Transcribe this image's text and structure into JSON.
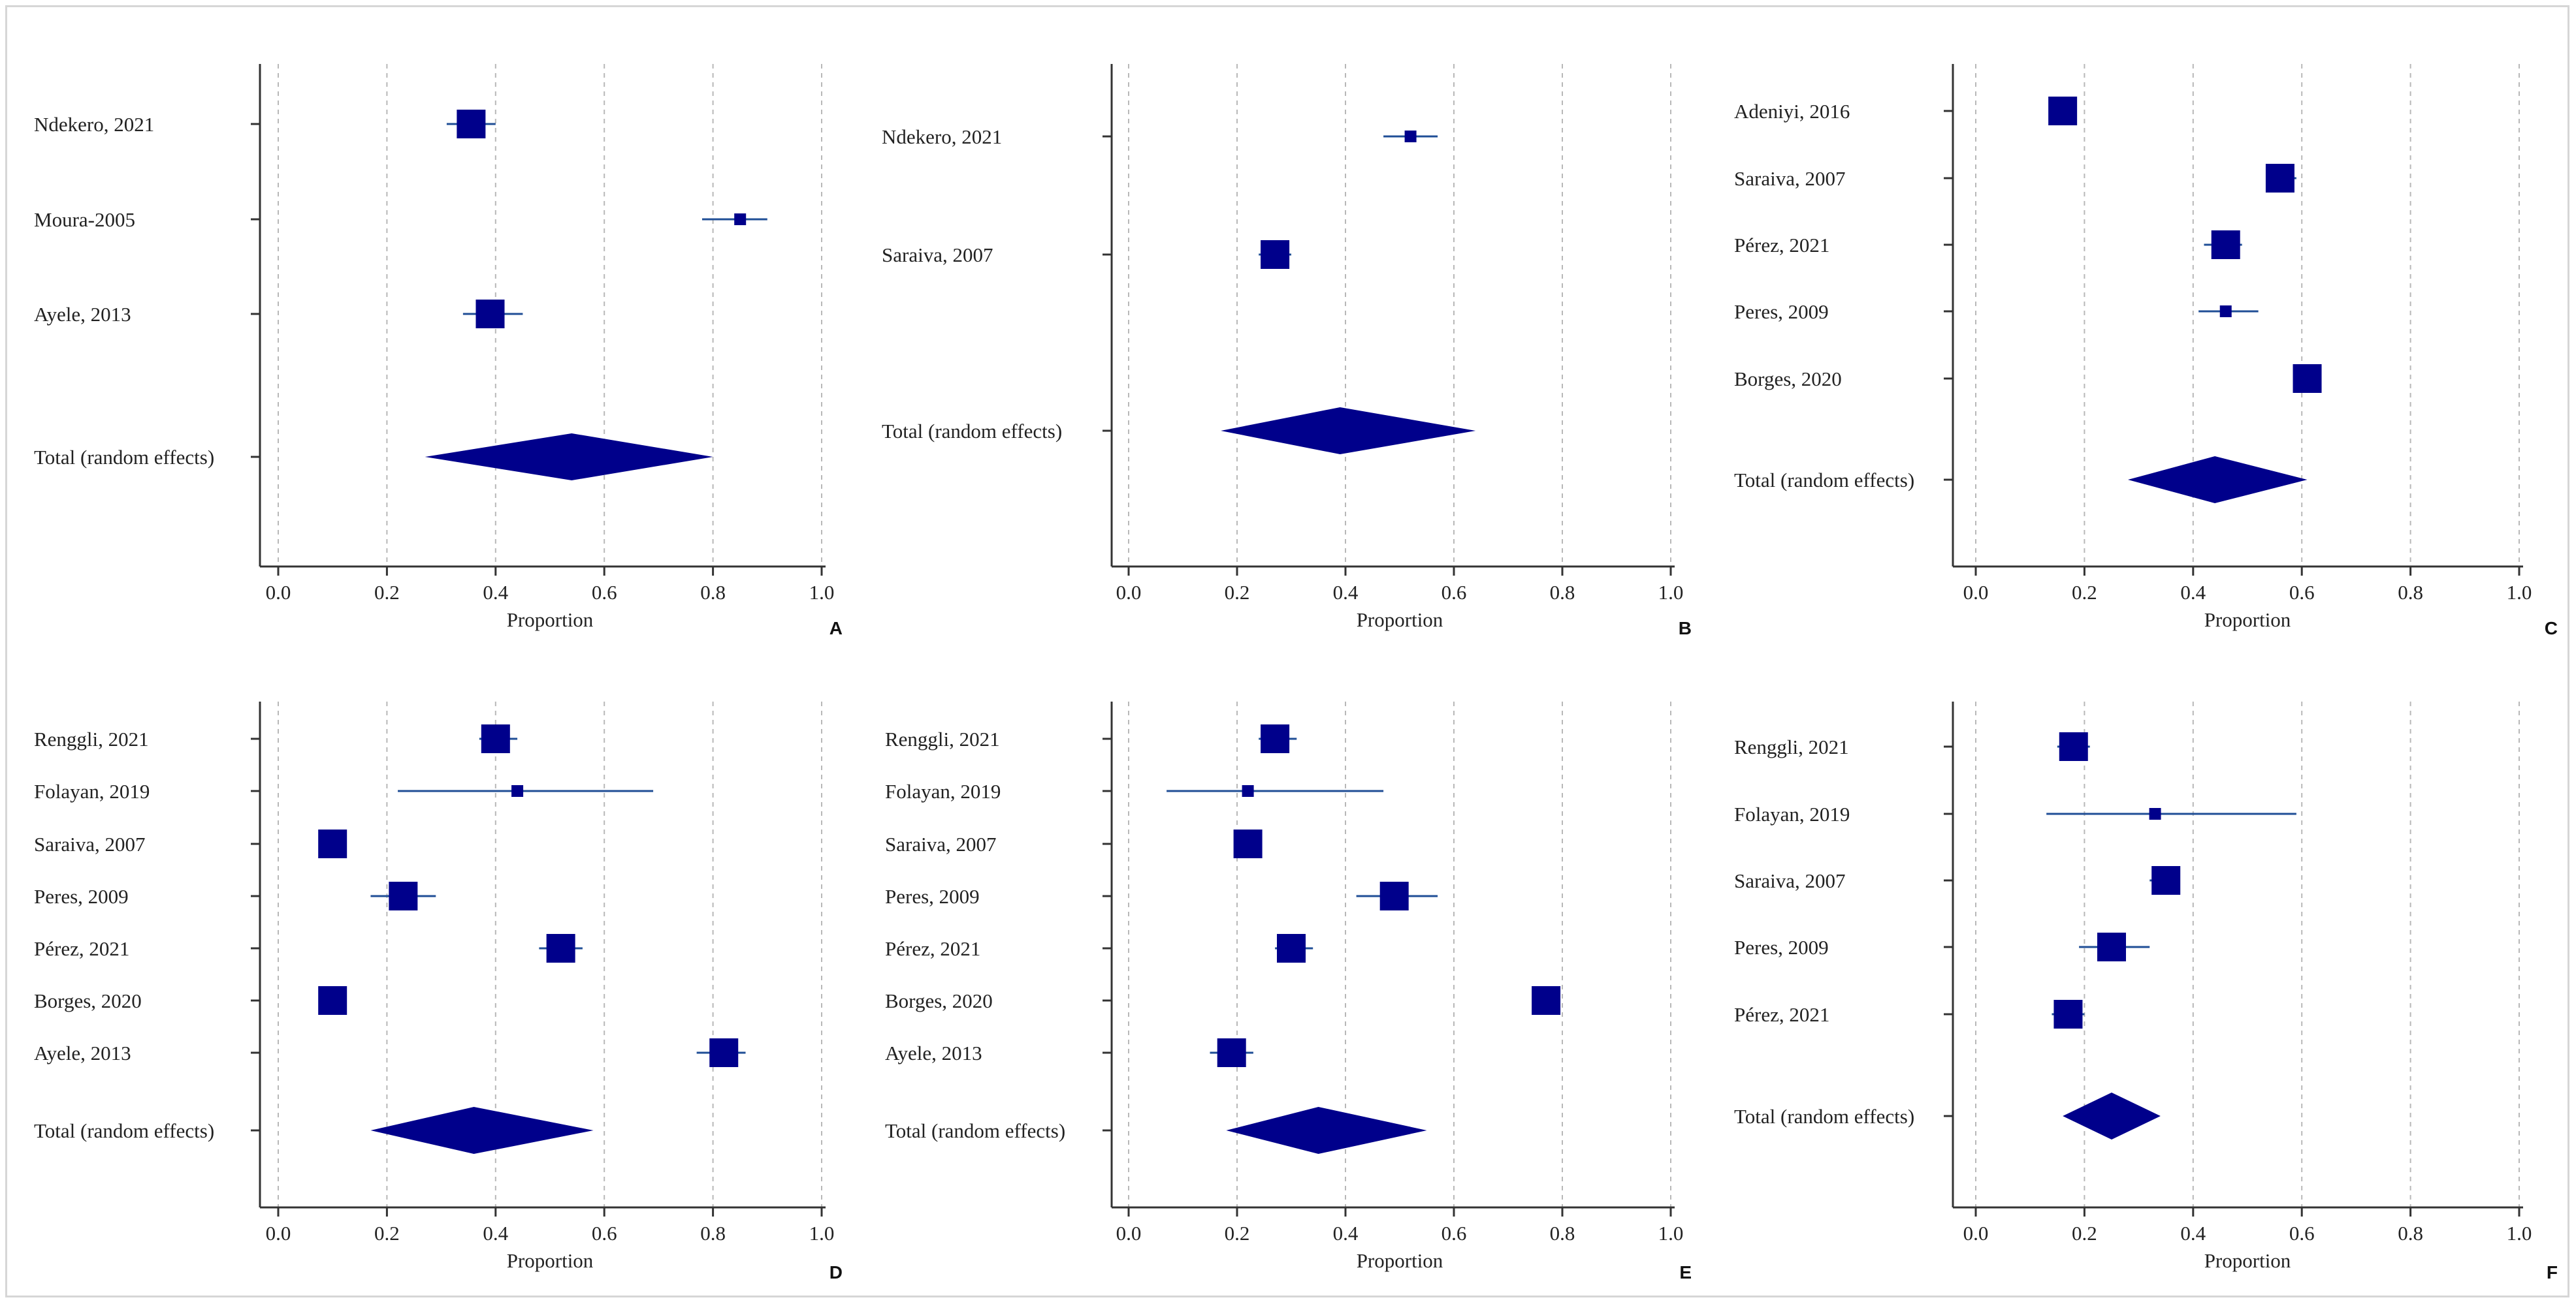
{
  "colors": {
    "marker": "#00008B",
    "ci_line": "#1F4E96",
    "axis": "#333333",
    "grid": "#b8b8b8",
    "text": "#222222"
  },
  "chart_data": [
    {
      "type": "forest",
      "panel": "A",
      "xlabel": "Proportion",
      "xlim": [
        0.0,
        1.0
      ],
      "ticks": [
        "0.0",
        "0.2",
        "0.4",
        "0.6",
        "0.8",
        "1.0"
      ],
      "total_label": "Total (random effects)",
      "studies": [
        {
          "label": "Ndekero, 2021",
          "estimate": 0.355,
          "ci": [
            0.31,
            0.4
          ],
          "weight": "large"
        },
        {
          "label": "Moura-2005",
          "estimate": 0.85,
          "ci": [
            0.78,
            0.9
          ],
          "weight": "small"
        },
        {
          "label": "Ayele, 2013",
          "estimate": 0.39,
          "ci": [
            0.34,
            0.45
          ],
          "weight": "large"
        }
      ],
      "total": {
        "estimate": 0.54,
        "ci": [
          0.27,
          0.8
        ]
      }
    },
    {
      "type": "forest",
      "panel": "B",
      "xlabel": "Proportion",
      "xlim": [
        0.0,
        1.0
      ],
      "ticks": [
        "0.0",
        "0.2",
        "0.4",
        "0.6",
        "0.8",
        "1.0"
      ],
      "total_label": "Total (random effects)",
      "studies": [
        {
          "label": "Ndekero, 2021",
          "estimate": 0.52,
          "ci": [
            0.47,
            0.57
          ],
          "weight": "small"
        },
        {
          "label": "Saraiva, 2007",
          "estimate": 0.27,
          "ci": [
            0.24,
            0.3
          ],
          "weight": "large"
        }
      ],
      "total": {
        "estimate": 0.39,
        "ci": [
          0.17,
          0.64
        ]
      }
    },
    {
      "type": "forest",
      "panel": "C",
      "xlabel": "Proportion",
      "xlim": [
        0.0,
        1.0
      ],
      "ticks": [
        "0.0",
        "0.2",
        "0.4",
        "0.6",
        "0.8",
        "1.0"
      ],
      "total_label": "Total (random effects)",
      "studies": [
        {
          "label": "Adeniyi, 2016",
          "estimate": 0.16,
          "ci": [
            0.14,
            0.18
          ],
          "weight": "large"
        },
        {
          "label": "Saraiva, 2007",
          "estimate": 0.56,
          "ci": [
            0.54,
            0.59
          ],
          "weight": "large"
        },
        {
          "label": "Pérez, 2021",
          "estimate": 0.46,
          "ci": [
            0.42,
            0.49
          ],
          "weight": "large"
        },
        {
          "label": "Peres, 2009",
          "estimate": 0.46,
          "ci": [
            0.41,
            0.52
          ],
          "weight": "small"
        },
        {
          "label": "Borges, 2020",
          "estimate": 0.61,
          "ci": [
            0.59,
            0.63
          ],
          "weight": "large"
        }
      ],
      "total": {
        "estimate": 0.44,
        "ci": [
          0.28,
          0.61
        ]
      }
    },
    {
      "type": "forest",
      "panel": "D",
      "xlabel": "Proportion",
      "xlim": [
        0.0,
        1.0
      ],
      "ticks": [
        "0.0",
        "0.2",
        "0.4",
        "0.6",
        "0.8",
        "1.0"
      ],
      "total_label": "Total (random effects)",
      "studies": [
        {
          "label": "Renggli, 2021",
          "estimate": 0.4,
          "ci": [
            0.37,
            0.44
          ],
          "weight": "large"
        },
        {
          "label": "Folayan, 2019",
          "estimate": 0.44,
          "ci": [
            0.22,
            0.69
          ],
          "weight": "small"
        },
        {
          "label": "Saraiva, 2007",
          "estimate": 0.1,
          "ci": [
            0.09,
            0.12
          ],
          "weight": "large"
        },
        {
          "label": "Peres, 2009",
          "estimate": 0.23,
          "ci": [
            0.17,
            0.29
          ],
          "weight": "large"
        },
        {
          "label": "Pérez, 2021",
          "estimate": 0.52,
          "ci": [
            0.48,
            0.56
          ],
          "weight": "large"
        },
        {
          "label": "Borges, 2020",
          "estimate": 0.1,
          "ci": [
            0.09,
            0.11
          ],
          "weight": "large"
        },
        {
          "label": "Ayele, 2013",
          "estimate": 0.82,
          "ci": [
            0.77,
            0.86
          ],
          "weight": "large"
        }
      ],
      "total": {
        "estimate": 0.36,
        "ci": [
          0.17,
          0.58
        ]
      }
    },
    {
      "type": "forest",
      "panel": "E",
      "xlabel": "Proportion",
      "xlim": [
        0.0,
        1.0
      ],
      "ticks": [
        "0.0",
        "0.2",
        "0.4",
        "0.6",
        "0.8",
        "1.0"
      ],
      "total_label": "Total (random effects)",
      "studies": [
        {
          "label": "Renggli, 2021",
          "estimate": 0.27,
          "ci": [
            0.24,
            0.31
          ],
          "weight": "large"
        },
        {
          "label": "Folayan, 2019",
          "estimate": 0.22,
          "ci": [
            0.07,
            0.47
          ],
          "weight": "small"
        },
        {
          "label": "Saraiva, 2007",
          "estimate": 0.22,
          "ci": [
            0.2,
            0.24
          ],
          "weight": "large"
        },
        {
          "label": "Peres, 2009",
          "estimate": 0.49,
          "ci": [
            0.42,
            0.57
          ],
          "weight": "large"
        },
        {
          "label": "Pérez, 2021",
          "estimate": 0.3,
          "ci": [
            0.27,
            0.34
          ],
          "weight": "large"
        },
        {
          "label": "Borges, 2020",
          "estimate": 0.77,
          "ci": [
            0.75,
            0.79
          ],
          "weight": "large"
        },
        {
          "label": "Ayele, 2013",
          "estimate": 0.19,
          "ci": [
            0.15,
            0.23
          ],
          "weight": "large"
        }
      ],
      "total": {
        "estimate": 0.35,
        "ci": [
          0.18,
          0.55
        ]
      }
    },
    {
      "type": "forest",
      "panel": "F",
      "xlabel": "Proportion",
      "xlim": [
        0.0,
        1.0
      ],
      "ticks": [
        "0.0",
        "0.2",
        "0.4",
        "0.6",
        "0.8",
        "1.0"
      ],
      "total_label": "Total (random effects)",
      "studies": [
        {
          "label": "Renggli, 2021",
          "estimate": 0.18,
          "ci": [
            0.15,
            0.21
          ],
          "weight": "large"
        },
        {
          "label": "Folayan, 2019",
          "estimate": 0.33,
          "ci": [
            0.13,
            0.59
          ],
          "weight": "small"
        },
        {
          "label": "Saraiva, 2007",
          "estimate": 0.35,
          "ci": [
            0.32,
            0.37
          ],
          "weight": "large"
        },
        {
          "label": "Peres, 2009",
          "estimate": 0.25,
          "ci": [
            0.19,
            0.32
          ],
          "weight": "large"
        },
        {
          "label": "Pérez, 2021",
          "estimate": 0.17,
          "ci": [
            0.14,
            0.2
          ],
          "weight": "large"
        }
      ],
      "total": {
        "estimate": 0.25,
        "ci": [
          0.16,
          0.34
        ]
      }
    }
  ]
}
